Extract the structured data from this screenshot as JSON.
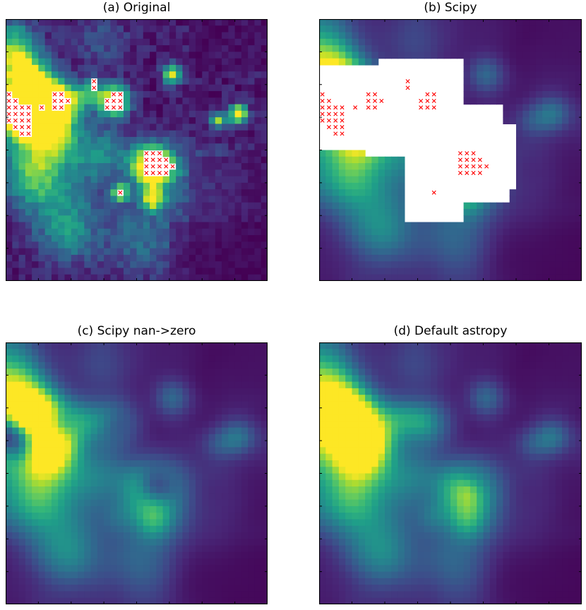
{
  "figure": {
    "panels": [
      {
        "id": "a",
        "title": "(a) Original"
      },
      {
        "id": "b",
        "title": "(b) Scipy"
      },
      {
        "id": "c",
        "title": "(c) Scipy nan->zero"
      },
      {
        "id": "d",
        "title": "(d) Default astropy"
      }
    ]
  },
  "colors": {
    "colormap": "viridis",
    "marker": "#ff0000",
    "masked": "#ffffff",
    "frame": "#000000"
  },
  "chart_data": [
    {
      "type": "heatmap",
      "title": "(a) Original",
      "colormap": "viridis",
      "grid_size": [
        40,
        40
      ],
      "xlim": [
        0,
        40
      ],
      "ylim": [
        0,
        40
      ],
      "tick_labels": "hidden",
      "nan_color": "#ffffff",
      "nan_marker": "x",
      "nan_marker_color": "#ff0000",
      "nan_pixels": [
        [
          0,
          11
        ],
        [
          0,
          12
        ],
        [
          0,
          13
        ],
        [
          0,
          14
        ],
        [
          0,
          15
        ],
        [
          1,
          12
        ],
        [
          1,
          13
        ],
        [
          1,
          14
        ],
        [
          1,
          15
        ],
        [
          1,
          16
        ],
        [
          2,
          13
        ],
        [
          2,
          14
        ],
        [
          2,
          15
        ],
        [
          2,
          16
        ],
        [
          2,
          17
        ],
        [
          3,
          13
        ],
        [
          3,
          14
        ],
        [
          3,
          15
        ],
        [
          3,
          16
        ],
        [
          3,
          17
        ],
        [
          5,
          13
        ],
        [
          7,
          11
        ],
        [
          7,
          12
        ],
        [
          7,
          13
        ],
        [
          8,
          11
        ],
        [
          8,
          12
        ],
        [
          8,
          13
        ],
        [
          9,
          12
        ],
        [
          13,
          9
        ],
        [
          13,
          10
        ],
        [
          15,
          12
        ],
        [
          15,
          13
        ],
        [
          16,
          11
        ],
        [
          16,
          12
        ],
        [
          16,
          13
        ],
        [
          17,
          11
        ],
        [
          17,
          12
        ],
        [
          17,
          13
        ],
        [
          21,
          20
        ],
        [
          21,
          21
        ],
        [
          21,
          22
        ],
        [
          21,
          23
        ],
        [
          22,
          20
        ],
        [
          22,
          21
        ],
        [
          22,
          22
        ],
        [
          22,
          23
        ],
        [
          23,
          20
        ],
        [
          23,
          21
        ],
        [
          23,
          22
        ],
        [
          23,
          23
        ],
        [
          24,
          21
        ],
        [
          24,
          22
        ],
        [
          24,
          23
        ],
        [
          25,
          22
        ],
        [
          17,
          26
        ]
      ]
    },
    {
      "type": "heatmap",
      "title": "(b) Scipy",
      "colormap": "viridis",
      "grid_size": [
        40,
        40
      ],
      "xlim": [
        0,
        40
      ],
      "ylim": [
        0,
        40
      ],
      "tick_labels": "hidden",
      "nan_color": "#ffffff",
      "nan_marker": "x",
      "nan_marker_color": "#ff0000",
      "note": "NaN regions propagated by convolution"
    },
    {
      "type": "heatmap",
      "title": "(c) Scipy nan->zero",
      "colormap": "viridis",
      "grid_size": [
        40,
        40
      ],
      "xlim": [
        0,
        40
      ],
      "ylim": [
        0,
        40
      ],
      "tick_labels": "hidden"
    },
    {
      "type": "heatmap",
      "title": "(d) Default astropy",
      "colormap": "viridis",
      "grid_size": [
        40,
        40
      ],
      "xlim": [
        0,
        40
      ],
      "ylim": [
        0,
        40
      ],
      "tick_labels": "hidden"
    }
  ]
}
